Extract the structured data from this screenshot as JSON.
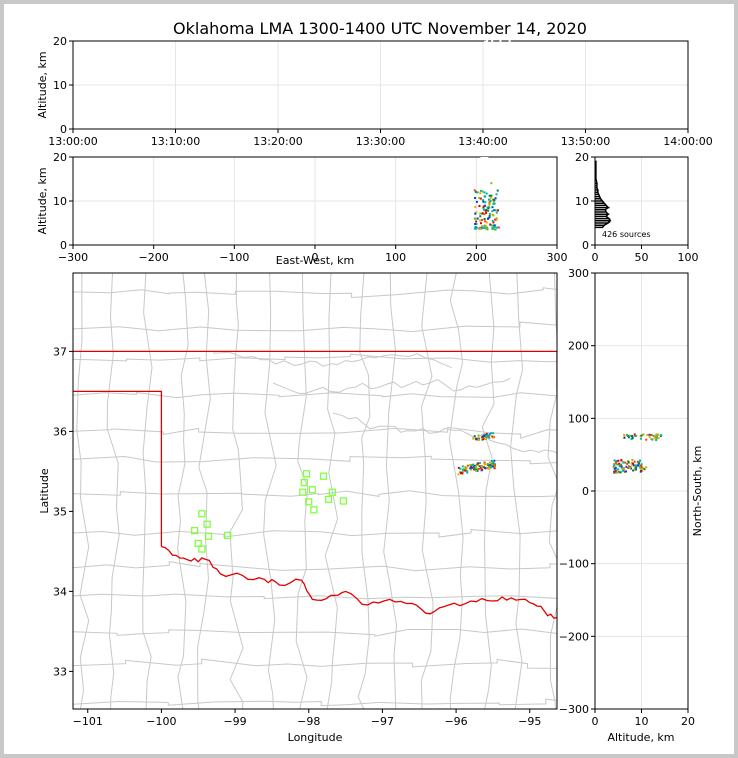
{
  "chart_data": {
    "type": "scatter",
    "title": "Oklahoma LMA 1300-1400 UTC November 14, 2020",
    "colors": {
      "state_border": "#e00000",
      "county_lines": "#c8c8c8",
      "stations": "#80ff40",
      "histogram": "#000000"
    },
    "time_height": {
      "ylabel": "Altitude, km",
      "ylim": [
        0,
        20
      ],
      "yticks": [
        "0",
        "10",
        "20"
      ],
      "xticks": [
        "13:00:00",
        "13:10:00",
        "13:20:00",
        "13:30:00",
        "13:40:00",
        "13:50:00",
        "14:00:00"
      ],
      "xlim_minutes": [
        0,
        60
      ],
      "sources": [
        [
          40.4,
          20
        ],
        [
          40.9,
          19.9
        ],
        [
          41.7,
          20
        ],
        [
          42.6,
          20
        ],
        [
          40.2,
          19.8
        ]
      ]
    },
    "ew_altitude": {
      "xlabel": "East-West, km",
      "ylabel": "Altitude, km",
      "xlim": [
        -300,
        300
      ],
      "ylim": [
        0,
        20
      ],
      "xticks": [
        "−300",
        "−200",
        "−100",
        "0",
        "100",
        "200",
        "300"
      ],
      "yticks": [
        "0",
        "10",
        "20"
      ]
    },
    "histogram": {
      "annotation": "426 sources",
      "xlim": [
        0,
        100
      ],
      "ylim": [
        0,
        20
      ],
      "xticks": [
        "0",
        "50",
        "100"
      ],
      "yticks": [
        "0",
        "10",
        "20"
      ],
      "altitude_counts": [
        [
          4,
          8
        ],
        [
          4.5,
          10
        ],
        [
          5,
          14
        ],
        [
          5.5,
          16
        ],
        [
          6,
          15
        ],
        [
          6.5,
          12
        ],
        [
          7,
          14
        ],
        [
          7.5,
          12
        ],
        [
          8,
          11
        ],
        [
          8.5,
          14
        ],
        [
          9,
          12
        ],
        [
          9.5,
          10
        ],
        [
          10,
          8
        ],
        [
          10.5,
          6
        ],
        [
          11,
          5
        ],
        [
          11.5,
          4
        ],
        [
          12,
          3
        ],
        [
          12.5,
          3
        ],
        [
          13,
          2
        ],
        [
          13.5,
          2
        ],
        [
          14,
          2
        ],
        [
          15,
          1
        ],
        [
          16,
          1
        ],
        [
          17,
          1
        ],
        [
          18,
          1
        ],
        [
          19,
          1
        ]
      ]
    },
    "plan_view": {
      "xlabel": "Longitude",
      "ylabel": "Latitude",
      "xlim": [
        -101.2,
        -94.63
      ],
      "ylim": [
        32.53,
        37.98
      ],
      "xticks": [
        "−101",
        "−100",
        "−99",
        "−98",
        "−97",
        "−96",
        "−95"
      ],
      "yticks": [
        "33",
        "34",
        "35",
        "36",
        "37"
      ],
      "stations": [
        [
          -99.45,
          34.97
        ],
        [
          -99.38,
          34.84
        ],
        [
          -99.55,
          34.76
        ],
        [
          -99.36,
          34.69
        ],
        [
          -99.5,
          34.6
        ],
        [
          -99.45,
          34.53
        ],
        [
          -99.1,
          34.7
        ],
        [
          -98.03,
          35.47
        ],
        [
          -98.06,
          35.36
        ],
        [
          -98.08,
          35.24
        ],
        [
          -97.95,
          35.27
        ],
        [
          -97.8,
          35.44
        ],
        [
          -97.68,
          35.24
        ],
        [
          -98.0,
          35.12
        ],
        [
          -97.93,
          35.02
        ],
        [
          -97.73,
          35.15
        ],
        [
          -97.53,
          35.13
        ]
      ]
    },
    "ns_altitude": {
      "xlabel": "Altitude, km",
      "ylabel": "North-South, km",
      "xlim": [
        0,
        20
      ],
      "ylim": [
        -300,
        300
      ],
      "xticks": [
        "0",
        "10",
        "20"
      ],
      "yticks": [
        "−300",
        "−200",
        "−100",
        "0",
        "100",
        "200",
        "300"
      ]
    },
    "source_color_scale": [
      "#1040d0",
      "#00b0c0",
      "#00c090",
      "#008040",
      "#80c000",
      "#ffa000",
      "#ff4000",
      "#e00000"
    ]
  }
}
